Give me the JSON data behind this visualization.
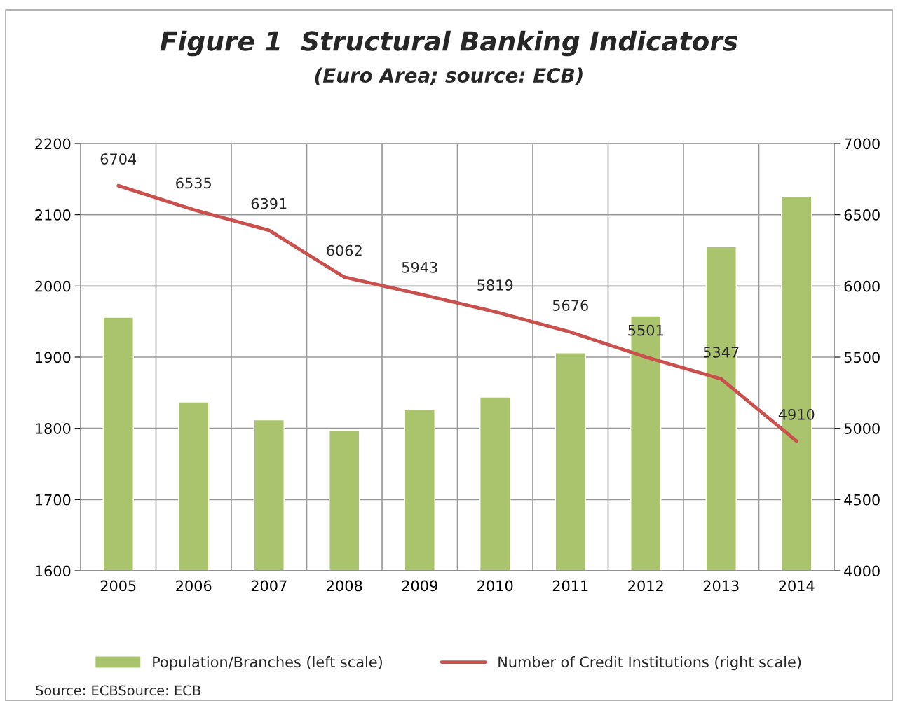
{
  "chart_data": {
    "type": "bar",
    "title": "Figure 1  Structural Banking Indicators",
    "subtitle": "(Euro Area; source: ECB)",
    "categories": [
      "2005",
      "2006",
      "2007",
      "2008",
      "2009",
      "2010",
      "2011",
      "2012",
      "2013",
      "2014"
    ],
    "series": [
      {
        "name": "Population/Branches (left scale)",
        "color": "#a9c46c",
        "values": [
          1956,
          1837,
          1812,
          1797,
          1827,
          1844,
          1906,
          1958,
          2055,
          2126
        ]
      },
      {
        "name": "Number of Credit Institutions (right scale)",
        "type": "line",
        "axis": "y2",
        "color": "#c9504c",
        "data_labels": true,
        "values": [
          6704,
          6535,
          6391,
          6062,
          5943,
          5819,
          5676,
          5501,
          5347,
          4910
        ]
      }
    ],
    "ylim": [
      1600,
      2200
    ],
    "yticks": [
      1600,
      1700,
      1800,
      1900,
      2000,
      2100,
      2200
    ],
    "y2lim": [
      4000,
      7000
    ],
    "y2ticks": [
      4000,
      4500,
      5000,
      5500,
      6000,
      6500,
      7000
    ],
    "grid": true,
    "legend": "bottom",
    "marker": "none",
    "line_style": "solid",
    "annotations": [
      "Source: ECBSource: ECB"
    ]
  }
}
